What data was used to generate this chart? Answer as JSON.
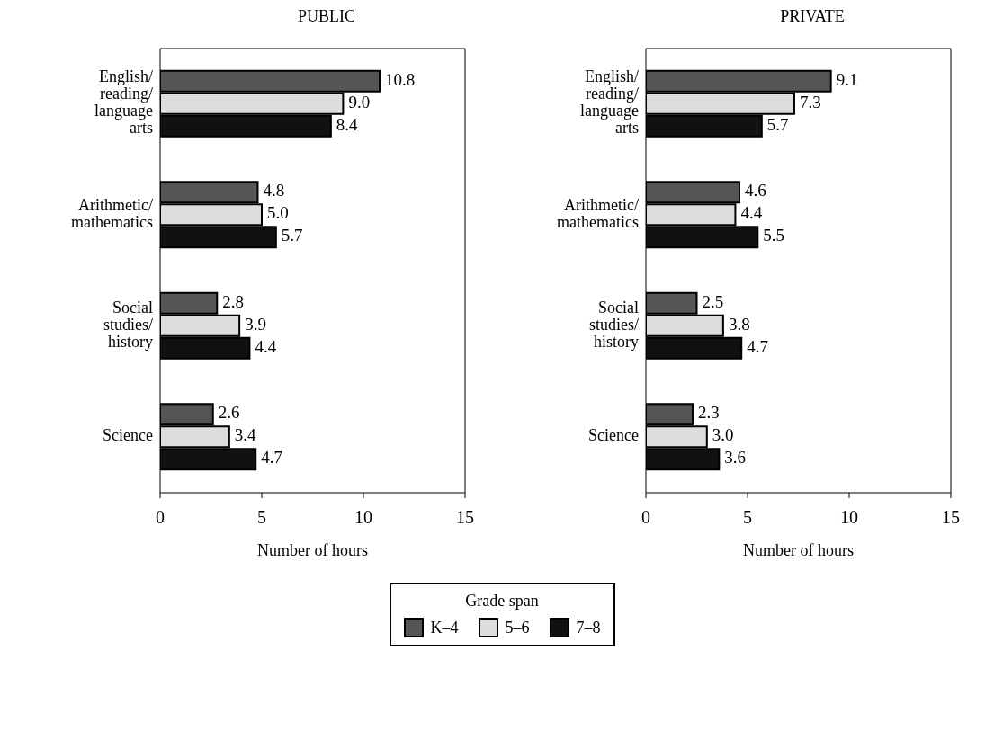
{
  "chart_data": [
    {
      "type": "bar",
      "orientation": "horizontal",
      "title": "PUBLIC",
      "xlabel": "Number of hours",
      "categories": [
        "English/ reading/ language arts",
        "Arithmetic/ mathematics",
        "Social studies/ history",
        "Science"
      ],
      "xlim": [
        0,
        15
      ],
      "xticks": [
        0,
        5,
        10,
        15
      ],
      "grid": false,
      "legend": "bottom",
      "legend_title": "Grade span",
      "series": [
        {
          "name": "K–4",
          "color": "#555555",
          "values": [
            10.8,
            4.8,
            2.8,
            2.6
          ],
          "value_labels": [
            "10.8",
            "4.8",
            "2.8",
            "2.6"
          ]
        },
        {
          "name": "5–6",
          "color": "#dddddd",
          "values": [
            9.0,
            5.0,
            3.9,
            3.4
          ],
          "value_labels": [
            "9.0",
            "5.0",
            "3.9",
            "3.4"
          ]
        },
        {
          "name": "7–8",
          "color": "#111111",
          "values": [
            8.4,
            5.7,
            4.4,
            4.7
          ],
          "value_labels": [
            "8.4",
            "5.7",
            "4.4",
            "4.7"
          ]
        }
      ]
    },
    {
      "type": "bar",
      "orientation": "horizontal",
      "title": "PRIVATE",
      "xlabel": "Number of hours",
      "categories": [
        "English/ reading/ language arts",
        "Arithmetic/ mathematics",
        "Social studies/ history",
        "Science"
      ],
      "xlim": [
        0,
        15
      ],
      "xticks": [
        0,
        5,
        10,
        15
      ],
      "grid": false,
      "legend": false,
      "series": [
        {
          "color": "#555555",
          "values": [
            9.1,
            4.6,
            2.5,
            2.3
          ],
          "value_labels": [
            "9.1",
            "4.6",
            "2.5",
            "2.3"
          ]
        },
        {
          "color": "#dddddd",
          "values": [
            7.3,
            4.4,
            3.8,
            3.0
          ],
          "value_labels": [
            "7.3",
            "4.4",
            "3.8",
            "3.0"
          ]
        },
        {
          "color": "#111111",
          "values": [
            5.7,
            5.5,
            4.7,
            3.6
          ],
          "value_labels": [
            "5.7",
            "5.5",
            "4.7",
            "3.6"
          ]
        }
      ]
    }
  ]
}
